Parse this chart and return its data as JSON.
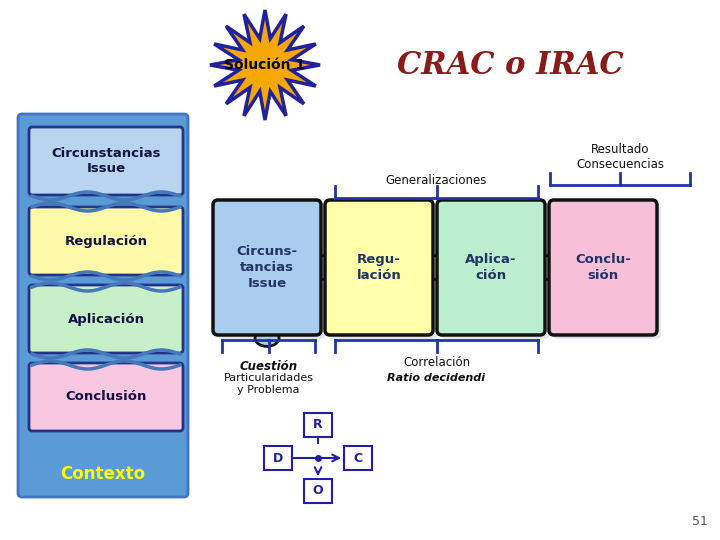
{
  "bg_color": "#ffffff",
  "title_crac": "CRAC o IRAC",
  "title_crac_color": "#8b1a1a",
  "solucion_text": "Solución 1",
  "solucion_bg": "#f5a800",
  "solucion_border": "#2020a0",
  "left_panel_bg": "#5b9bd5",
  "left_panel_border": "#4472c4",
  "left_items": [
    "Circunstancias\nIssue",
    "Regulación",
    "Aplicación",
    "Conclusión"
  ],
  "left_colors": [
    "#b8d4f0",
    "#fffaaa",
    "#c8f0c8",
    "#f8c8e0"
  ],
  "contexto_text": "Contexto",
  "contexto_color": "#ffff00",
  "puzzle_labels": [
    "Circuns-\ntancias\nIssue",
    "Regu-\nlación",
    "Aplica-\nción",
    "Conclu-\nsión"
  ],
  "puzzle_colors": [
    "#aaccee",
    "#ffffaa",
    "#bbeecc",
    "#f8c0d8"
  ],
  "generalizaciones_text": "Generalizaciones",
  "resultado_text": "Resultado\nConsecuencias",
  "cuestion_text": "Cuestión",
  "particularidades_text": "Particularidades\ny Problema",
  "correlacion_text": "Correlación",
  "ratio_text": "Ratio decidendi",
  "page_number": "51",
  "diagram_labels": [
    "R",
    "D",
    "C",
    "O"
  ],
  "diagram_color": "#2020a0"
}
